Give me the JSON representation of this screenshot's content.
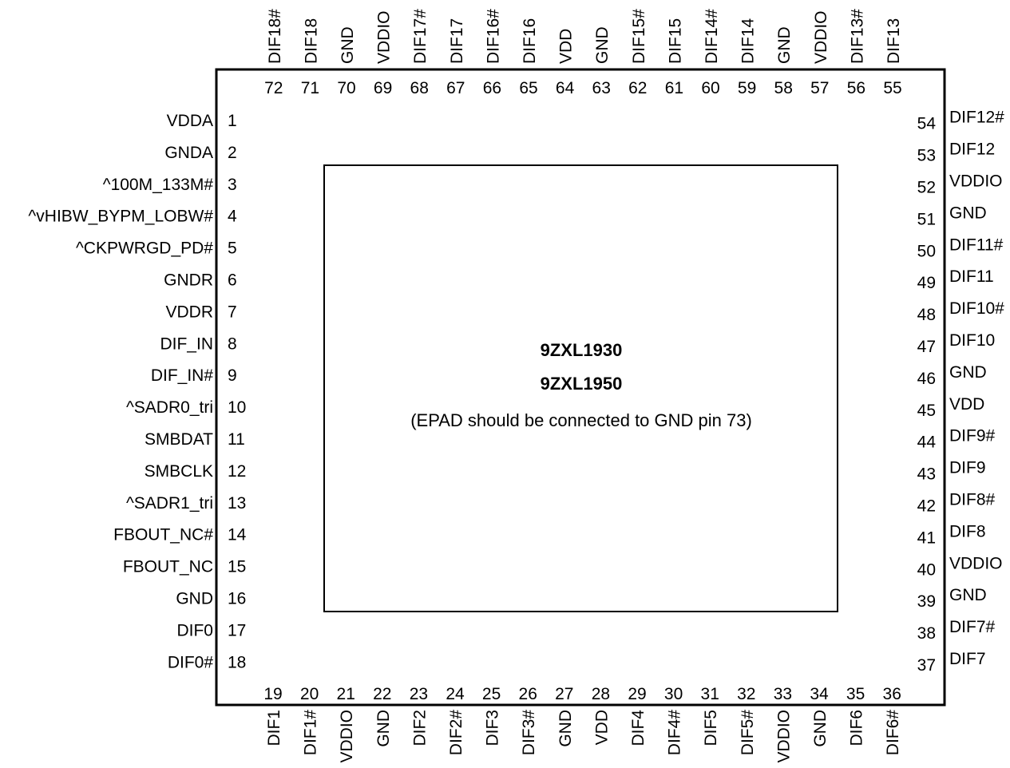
{
  "package": {
    "part_numbers": [
      "9ZXL1930",
      "9ZXL1950"
    ],
    "epad_note": "(EPAD should be connected to GND pin 73)"
  },
  "pins": {
    "left": [
      {
        "num": "1",
        "name": "VDDA"
      },
      {
        "num": "2",
        "name": "GNDA"
      },
      {
        "num": "3",
        "name": "^100M_133M#"
      },
      {
        "num": "4",
        "name": "^vHIBW_BYPM_LOBW#"
      },
      {
        "num": "5",
        "name": "^CKPWRGD_PD#"
      },
      {
        "num": "6",
        "name": "GNDR"
      },
      {
        "num": "7",
        "name": "VDDR"
      },
      {
        "num": "8",
        "name": "DIF_IN"
      },
      {
        "num": "9",
        "name": "DIF_IN#"
      },
      {
        "num": "10",
        "name": "^SADR0_tri"
      },
      {
        "num": "11",
        "name": "SMBDAT"
      },
      {
        "num": "12",
        "name": "SMBCLK"
      },
      {
        "num": "13",
        "name": "^SADR1_tri"
      },
      {
        "num": "14",
        "name": "FBOUT_NC#"
      },
      {
        "num": "15",
        "name": "FBOUT_NC"
      },
      {
        "num": "16",
        "name": "GND"
      },
      {
        "num": "17",
        "name": "DIF0"
      },
      {
        "num": "18",
        "name": "DIF0#"
      }
    ],
    "bottom": [
      {
        "num": "19",
        "name": "DIF1"
      },
      {
        "num": "20",
        "name": "DIF1#"
      },
      {
        "num": "21",
        "name": "VDDIO"
      },
      {
        "num": "22",
        "name": "GND"
      },
      {
        "num": "23",
        "name": "DIF2"
      },
      {
        "num": "24",
        "name": "DIF2#"
      },
      {
        "num": "25",
        "name": "DIF3"
      },
      {
        "num": "26",
        "name": "DIF3#"
      },
      {
        "num": "27",
        "name": "GND"
      },
      {
        "num": "28",
        "name": "VDD"
      },
      {
        "num": "29",
        "name": "DIF4"
      },
      {
        "num": "30",
        "name": "DIF4#"
      },
      {
        "num": "31",
        "name": "DIF5"
      },
      {
        "num": "32",
        "name": "DIF5#"
      },
      {
        "num": "33",
        "name": "VDDIO"
      },
      {
        "num": "34",
        "name": "GND"
      },
      {
        "num": "35",
        "name": "DIF6"
      },
      {
        "num": "36",
        "name": "DIF6#"
      }
    ],
    "right": [
      {
        "num": "37",
        "name": "DIF7"
      },
      {
        "num": "38",
        "name": "DIF7#"
      },
      {
        "num": "39",
        "name": "GND"
      },
      {
        "num": "40",
        "name": "VDDIO"
      },
      {
        "num": "41",
        "name": "DIF8"
      },
      {
        "num": "42",
        "name": "DIF8#"
      },
      {
        "num": "43",
        "name": "DIF9"
      },
      {
        "num": "44",
        "name": "DIF9#"
      },
      {
        "num": "45",
        "name": "VDD"
      },
      {
        "num": "46",
        "name": "GND"
      },
      {
        "num": "47",
        "name": "DIF10"
      },
      {
        "num": "48",
        "name": "DIF10#"
      },
      {
        "num": "49",
        "name": "DIF11"
      },
      {
        "num": "50",
        "name": "DIF11#"
      },
      {
        "num": "51",
        "name": "GND"
      },
      {
        "num": "52",
        "name": "VDDIO"
      },
      {
        "num": "53",
        "name": "DIF12"
      },
      {
        "num": "54",
        "name": "DIF12#"
      }
    ],
    "top": [
      {
        "num": "55",
        "name": "DIF13"
      },
      {
        "num": "56",
        "name": "DIF13#"
      },
      {
        "num": "57",
        "name": "VDDIO"
      },
      {
        "num": "58",
        "name": "GND"
      },
      {
        "num": "59",
        "name": "DIF14"
      },
      {
        "num": "60",
        "name": "DIF14#"
      },
      {
        "num": "61",
        "name": "DIF15"
      },
      {
        "num": "62",
        "name": "DIF15#"
      },
      {
        "num": "63",
        "name": "GND"
      },
      {
        "num": "64",
        "name": "VDD"
      },
      {
        "num": "65",
        "name": "DIF16"
      },
      {
        "num": "66",
        "name": "DIF16#"
      },
      {
        "num": "67",
        "name": "DIF17"
      },
      {
        "num": "68",
        "name": "DIF17#"
      },
      {
        "num": "69",
        "name": "VDDIO"
      },
      {
        "num": "70",
        "name": "GND"
      },
      {
        "num": "71",
        "name": "DIF18"
      },
      {
        "num": "72",
        "name": "DIF18#"
      }
    ]
  }
}
